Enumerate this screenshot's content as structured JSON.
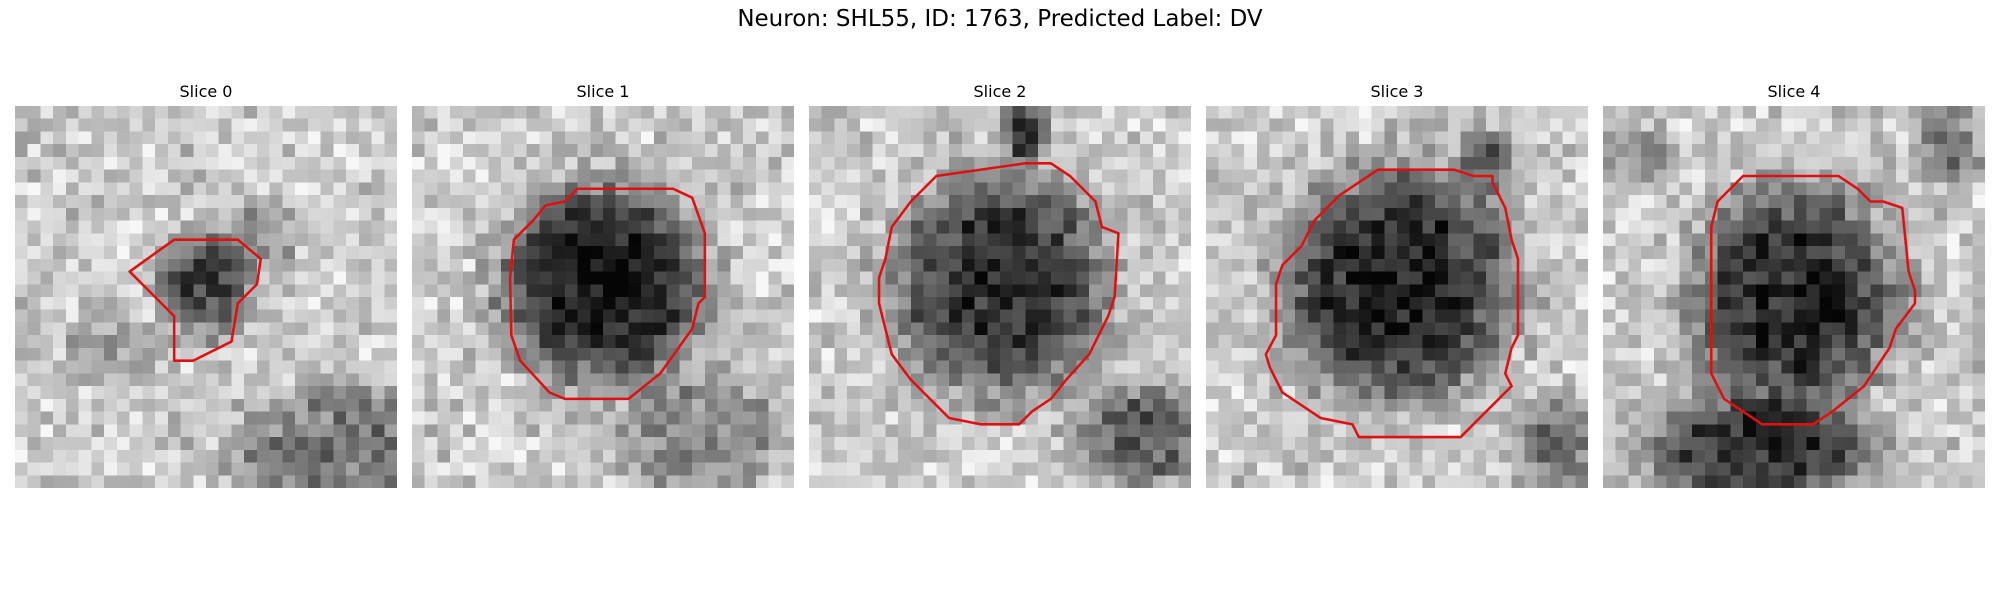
{
  "figure": {
    "title": "Neuron: SHL55, ID: 1763, Predicted Label: DV",
    "outline_color": "#e01010",
    "grid_size": 30,
    "panels": [
      {
        "title": "Slice 0",
        "seed": 11,
        "blobs": [
          {
            "cx": 15,
            "cy": 14,
            "rx": 3.5,
            "ry": 4,
            "depth": 0.55
          },
          {
            "cx": 19,
            "cy": 10,
            "rx": 3,
            "ry": 3,
            "depth": 0.25
          },
          {
            "cx": 26,
            "cy": 27,
            "rx": 9,
            "ry": 5,
            "depth": 0.35
          },
          {
            "cx": 8,
            "cy": 19,
            "rx": 4,
            "ry": 3,
            "depth": 0.15
          }
        ],
        "outline": [
          [
            12.5,
            10.5
          ],
          [
            9,
            13
          ],
          [
            12.5,
            16.5
          ],
          [
            12.5,
            20
          ],
          [
            14,
            20
          ],
          [
            17,
            18.5
          ],
          [
            17.5,
            15.5
          ],
          [
            19,
            14
          ],
          [
            19.3,
            12
          ],
          [
            17.5,
            10.5
          ]
        ]
      },
      {
        "title": "Slice 1",
        "seed": 23,
        "blobs": [
          {
            "cx": 15,
            "cy": 14,
            "rx": 8,
            "ry": 7.5,
            "depth": 0.72
          },
          {
            "cx": 23,
            "cy": 26,
            "rx": 7,
            "ry": 5,
            "depth": 0.25
          }
        ],
        "outline": [
          [
            13,
            6.5
          ],
          [
            12,
            7.5
          ],
          [
            10.5,
            7.8
          ],
          [
            9.5,
            9
          ],
          [
            8,
            10.5
          ],
          [
            7.7,
            13.5
          ],
          [
            7.8,
            18
          ],
          [
            8.5,
            20
          ],
          [
            10.8,
            22.5
          ],
          [
            12,
            23
          ],
          [
            17,
            23
          ],
          [
            19.5,
            21
          ],
          [
            22,
            17.5
          ],
          [
            22.5,
            15.5
          ],
          [
            23,
            15
          ],
          [
            23,
            10
          ],
          [
            22,
            7.2
          ],
          [
            20.5,
            6.5
          ]
        ]
      },
      {
        "title": "Slice 2",
        "seed": 37,
        "blobs": [
          {
            "cx": 15,
            "cy": 14,
            "rx": 8.5,
            "ry": 8.5,
            "depth": 0.62
          },
          {
            "cx": 17,
            "cy": 2,
            "rx": 2,
            "ry": 2.5,
            "depth": 0.5
          },
          {
            "cx": 26,
            "cy": 26,
            "rx": 5,
            "ry": 4,
            "depth": 0.45
          }
        ],
        "outline": [
          [
            10,
            5.5
          ],
          [
            8,
            7.5
          ],
          [
            6.5,
            9.5
          ],
          [
            6,
            12
          ],
          [
            5.5,
            13.5
          ],
          [
            5.5,
            15.5
          ],
          [
            6.5,
            19.5
          ],
          [
            8,
            21.5
          ],
          [
            11,
            24.5
          ],
          [
            13.5,
            25
          ],
          [
            16.5,
            25
          ],
          [
            17.5,
            24
          ],
          [
            19,
            23
          ],
          [
            20.2,
            21.5
          ],
          [
            22,
            19.5
          ],
          [
            23.5,
            16.5
          ],
          [
            24,
            15
          ],
          [
            24.3,
            10
          ],
          [
            23,
            9.5
          ],
          [
            22.5,
            7.5
          ],
          [
            20.5,
            5.5
          ],
          [
            19,
            4.5
          ],
          [
            17,
            4.5
          ]
        ]
      },
      {
        "title": "Slice 3",
        "seed": 51,
        "blobs": [
          {
            "cx": 15,
            "cy": 14,
            "rx": 9,
            "ry": 9,
            "depth": 0.68
          },
          {
            "cx": 22,
            "cy": 4,
            "rx": 2,
            "ry": 2.5,
            "depth": 0.4
          },
          {
            "cx": 28,
            "cy": 27,
            "rx": 4,
            "ry": 4,
            "depth": 0.35
          }
        ],
        "outline": [
          [
            13.5,
            5
          ],
          [
            10.5,
            7
          ],
          [
            8.5,
            9
          ],
          [
            7.5,
            11
          ],
          [
            6,
            12.5
          ],
          [
            5.5,
            14
          ],
          [
            5.5,
            18
          ],
          [
            4.7,
            19.5
          ],
          [
            5,
            20.5
          ],
          [
            6,
            22.5
          ],
          [
            9,
            24.5
          ],
          [
            11.5,
            25
          ],
          [
            12,
            26
          ],
          [
            20,
            26
          ],
          [
            21,
            25
          ],
          [
            24,
            22
          ],
          [
            23.5,
            21
          ],
          [
            24,
            19
          ],
          [
            24.5,
            18
          ],
          [
            24.5,
            12
          ],
          [
            24,
            10.5
          ],
          [
            23.5,
            8
          ],
          [
            22.5,
            6
          ],
          [
            22.5,
            5.5
          ],
          [
            21,
            5.5
          ],
          [
            19.5,
            5
          ]
        ]
      },
      {
        "title": "Slice 4",
        "seed": 67,
        "blobs": [
          {
            "cx": 15,
            "cy": 15,
            "rx": 8,
            "ry": 8.5,
            "depth": 0.66
          },
          {
            "cx": 12,
            "cy": 27,
            "rx": 9,
            "ry": 4,
            "depth": 0.6
          },
          {
            "cx": 27,
            "cy": 3,
            "rx": 3,
            "ry": 3,
            "depth": 0.3
          },
          {
            "cx": 3,
            "cy": 4,
            "rx": 3,
            "ry": 2,
            "depth": 0.25
          }
        ],
        "outline": [
          [
            11,
            5.5
          ],
          [
            10,
            6.5
          ],
          [
            9,
            7.5
          ],
          [
            8.5,
            9.5
          ],
          [
            8.5,
            21
          ],
          [
            9.5,
            23
          ],
          [
            11,
            24
          ],
          [
            12.5,
            25
          ],
          [
            16.5,
            25
          ],
          [
            18,
            24
          ],
          [
            20.5,
            22
          ],
          [
            22.5,
            19
          ],
          [
            23,
            17.5
          ],
          [
            24.5,
            15.5
          ],
          [
            24.5,
            14.5
          ],
          [
            24,
            13
          ],
          [
            23.5,
            8
          ],
          [
            22,
            7.5
          ],
          [
            21,
            7.5
          ],
          [
            20,
            6.5
          ],
          [
            18.5,
            5.5
          ]
        ]
      }
    ]
  }
}
